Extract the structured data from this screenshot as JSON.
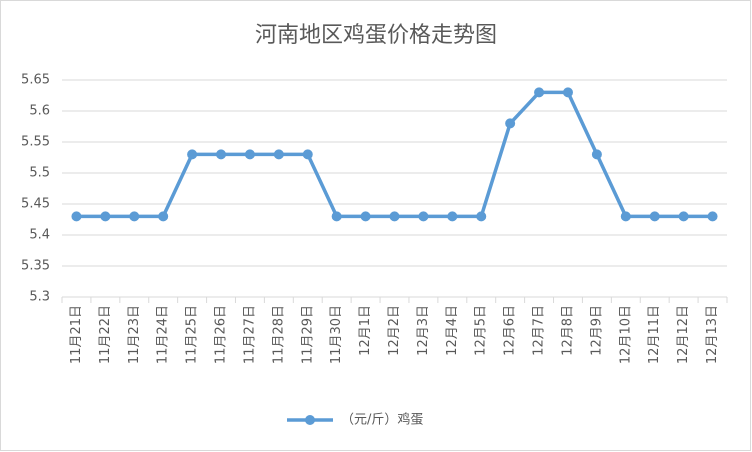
{
  "chart_data": {
    "type": "line",
    "title": "河南地区鸡蛋价格走势图",
    "categories": [
      "11月21日",
      "11月22日",
      "11月23日",
      "11月24日",
      "11月25日",
      "11月26日",
      "11月27日",
      "11月28日",
      "11月29日",
      "11月30日",
      "12月1日",
      "12月2日",
      "12月3日",
      "12月4日",
      "12月5日",
      "12月6日",
      "12月7日",
      "12月8日",
      "12月9日",
      "12月10日",
      "12月11日",
      "12月12日",
      "12月13日"
    ],
    "series": [
      {
        "name": "（元/斤）鸡蛋",
        "color": "#5b9bd5",
        "values": [
          5.43,
          5.43,
          5.43,
          5.43,
          5.53,
          5.53,
          5.53,
          5.53,
          5.53,
          5.43,
          5.43,
          5.43,
          5.43,
          5.43,
          5.43,
          5.58,
          5.63,
          5.63,
          5.53,
          5.43,
          5.43,
          5.43,
          5.43
        ]
      }
    ],
    "ylim": [
      5.3,
      5.65
    ],
    "yticks": [
      5.3,
      5.35,
      5.4,
      5.45,
      5.5,
      5.55,
      5.6,
      5.65
    ],
    "grid": true,
    "legend": "bottom"
  }
}
